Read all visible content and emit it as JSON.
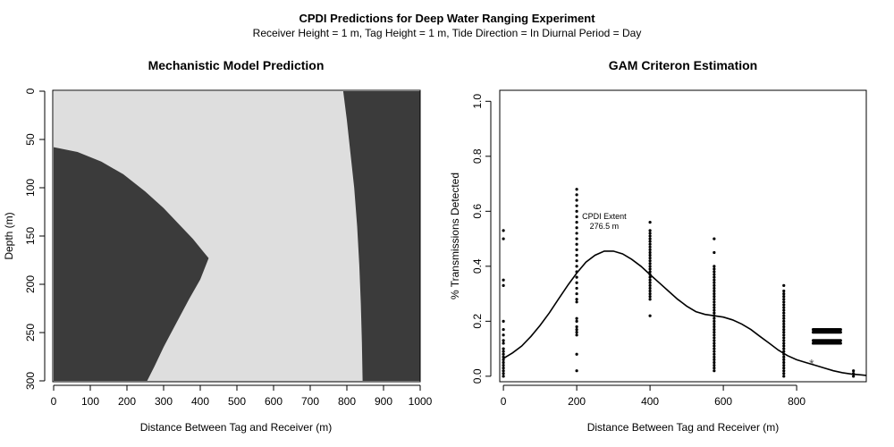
{
  "header": {
    "title": "CPDI Predictions for Deep Water Ranging Experiment",
    "subtitle": "Receiver Height = 1 m, Tag Height = 1 m, Tide Direction = In Diurnal Period = Day"
  },
  "chart_data": [
    {
      "type": "heatmap",
      "title": "Mechanistic Model Prediction",
      "xlabel": "Distance Between Tag and Receiver (m)",
      "ylabel": "Depth (m)",
      "xlim": [
        0,
        1000
      ],
      "ylim": [
        300,
        0
      ],
      "y_reversed": true,
      "x_ticks": [
        0,
        100,
        200,
        300,
        400,
        500,
        600,
        700,
        800,
        900,
        1000
      ],
      "y_ticks": [
        0,
        50,
        100,
        150,
        200,
        250,
        300
      ],
      "colors": {
        "shadow": "#3b3b3b",
        "detected": "#dedede"
      },
      "regions": [
        {
          "name": "near-field shadow",
          "color": "shadow",
          "boundary": [
            [
              0,
              58
            ],
            [
              65,
              63
            ],
            [
              130,
              73
            ],
            [
              190,
              86
            ],
            [
              250,
              104
            ],
            [
              300,
              121
            ],
            [
              340,
              137
            ],
            [
              380,
              153
            ],
            [
              410,
              167
            ],
            [
              423,
              173
            ],
            [
              400,
              195
            ],
            [
              370,
              215
            ],
            [
              335,
              240
            ],
            [
              300,
              265
            ],
            [
              275,
              285
            ],
            [
              255,
              300
            ],
            [
              0,
              300
            ]
          ]
        },
        {
          "name": "far-field shadow",
          "color": "shadow",
          "boundary": [
            [
              790,
              0
            ],
            [
              800,
              30
            ],
            [
              810,
              65
            ],
            [
              820,
              100
            ],
            [
              828,
              140
            ],
            [
              834,
              180
            ],
            [
              838,
              220
            ],
            [
              841,
              260
            ],
            [
              843,
              300
            ],
            [
              1000,
              300
            ],
            [
              1000,
              0
            ]
          ]
        }
      ]
    },
    {
      "type": "scatter",
      "title": "GAM Criteron Estimation",
      "xlabel": "Distance Between Tag and Receiver (m)",
      "ylabel": "% Transmissions Detected",
      "xlim": [
        -10,
        990
      ],
      "ylim": [
        -0.02,
        1.04
      ],
      "x_ticks": [
        0,
        200,
        400,
        600,
        800
      ],
      "y_ticks": [
        "0.0",
        "0.2",
        "0.4",
        "0.6",
        "0.8",
        "1.0"
      ],
      "points": [
        {
          "x": 0,
          "y": [
            0.53,
            0.5,
            0.35,
            0.33,
            0.2,
            0.17,
            0.15,
            0.13,
            0.12,
            0.1,
            0.09,
            0.08,
            0.07,
            0.06,
            0.05,
            0.04,
            0.03,
            0.02,
            0.01,
            0.0
          ]
        },
        {
          "x": 200,
          "y": [
            0.68,
            0.66,
            0.64,
            0.62,
            0.6,
            0.58,
            0.56,
            0.54,
            0.52,
            0.5,
            0.48,
            0.46,
            0.44,
            0.42,
            0.4,
            0.38,
            0.36,
            0.34,
            0.32,
            0.3,
            0.28,
            0.27,
            0.21,
            0.2,
            0.18,
            0.17,
            0.16,
            0.15,
            0.08,
            0.02
          ]
        },
        {
          "x": 400,
          "y": [
            0.56,
            0.53,
            0.52,
            0.51,
            0.5,
            0.49,
            0.48,
            0.47,
            0.46,
            0.45,
            0.44,
            0.43,
            0.42,
            0.41,
            0.4,
            0.39,
            0.38,
            0.37,
            0.36,
            0.35,
            0.34,
            0.33,
            0.32,
            0.31,
            0.3,
            0.29,
            0.28,
            0.22
          ]
        },
        {
          "x": 575,
          "y": [
            0.5,
            0.45,
            0.4,
            0.39,
            0.38,
            0.37,
            0.36,
            0.35,
            0.34,
            0.33,
            0.32,
            0.31,
            0.3,
            0.29,
            0.28,
            0.27,
            0.26,
            0.25,
            0.24,
            0.23,
            0.22,
            0.21,
            0.2,
            0.19,
            0.18,
            0.17,
            0.16,
            0.15,
            0.14,
            0.13,
            0.12,
            0.11,
            0.1,
            0.09,
            0.08,
            0.07,
            0.06,
            0.05,
            0.04,
            0.03,
            0.02
          ]
        },
        {
          "x": 765,
          "y": [
            0.33,
            0.31,
            0.3,
            0.29,
            0.28,
            0.27,
            0.26,
            0.25,
            0.24,
            0.23,
            0.22,
            0.21,
            0.2,
            0.19,
            0.18,
            0.17,
            0.16,
            0.15,
            0.14,
            0.13,
            0.12,
            0.11,
            0.1,
            0.09,
            0.08,
            0.07,
            0.06,
            0.05,
            0.04,
            0.03,
            0.02,
            0.01,
            0.0
          ]
        },
        {
          "x": 955,
          "y": [
            0.02,
            0.01,
            0.0
          ]
        }
      ],
      "dense_point_band": {
        "x_from": 845,
        "x_to": 920,
        "y": [
          0.17,
          0.16,
          0.13,
          0.12
        ]
      },
      "curve": {
        "x": [
          0,
          25,
          50,
          75,
          100,
          125,
          150,
          175,
          200,
          225,
          250,
          275,
          300,
          325,
          350,
          375,
          400,
          425,
          450,
          475,
          500,
          525,
          550,
          575,
          600,
          625,
          650,
          675,
          700,
          725,
          750,
          775,
          800,
          825,
          850,
          875,
          900,
          925,
          950,
          975,
          990
        ],
        "y": [
          0.065,
          0.085,
          0.11,
          0.145,
          0.185,
          0.23,
          0.28,
          0.33,
          0.375,
          0.415,
          0.44,
          0.455,
          0.455,
          0.445,
          0.425,
          0.4,
          0.37,
          0.34,
          0.31,
          0.28,
          0.255,
          0.235,
          0.225,
          0.22,
          0.215,
          0.205,
          0.19,
          0.17,
          0.145,
          0.12,
          0.095,
          0.075,
          0.06,
          0.05,
          0.04,
          0.03,
          0.02,
          0.013,
          0.008,
          0.005,
          0.003
        ]
      },
      "marker": {
        "x": 841,
        "y": 0.05,
        "symbol": "*"
      },
      "annotation": {
        "text_line1": "CPDI Extent",
        "text_line2": "276.5 m",
        "x": 275,
        "y": 0.555
      }
    }
  ]
}
